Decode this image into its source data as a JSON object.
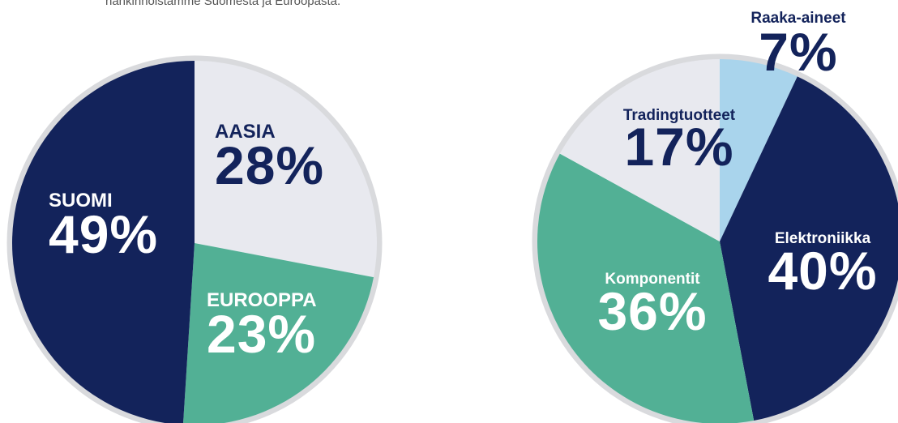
{
  "intro": "hankinnoistamme Suomesta ja Euroopasta.",
  "chart_data": [
    {
      "type": "pie",
      "categories": [
        "AASIA",
        "EUROOPPA",
        "SUOMI"
      ],
      "values": [
        28,
        23,
        49
      ],
      "value_labels": [
        "28%",
        "23%",
        "49%"
      ],
      "colors": [
        "#e8e9ef",
        "#52b095",
        "#13235b"
      ]
    },
    {
      "type": "pie",
      "categories": [
        "Raaka-aineet",
        "Elektroniikka",
        "Komponentit",
        "Tradingtuotteet"
      ],
      "values": [
        7,
        40,
        36,
        17
      ],
      "value_labels": [
        "7%",
        "40%",
        "36%",
        "17%"
      ],
      "colors": [
        "#a9d4ec",
        "#13235b",
        "#52b095",
        "#e8e9ef"
      ]
    }
  ]
}
